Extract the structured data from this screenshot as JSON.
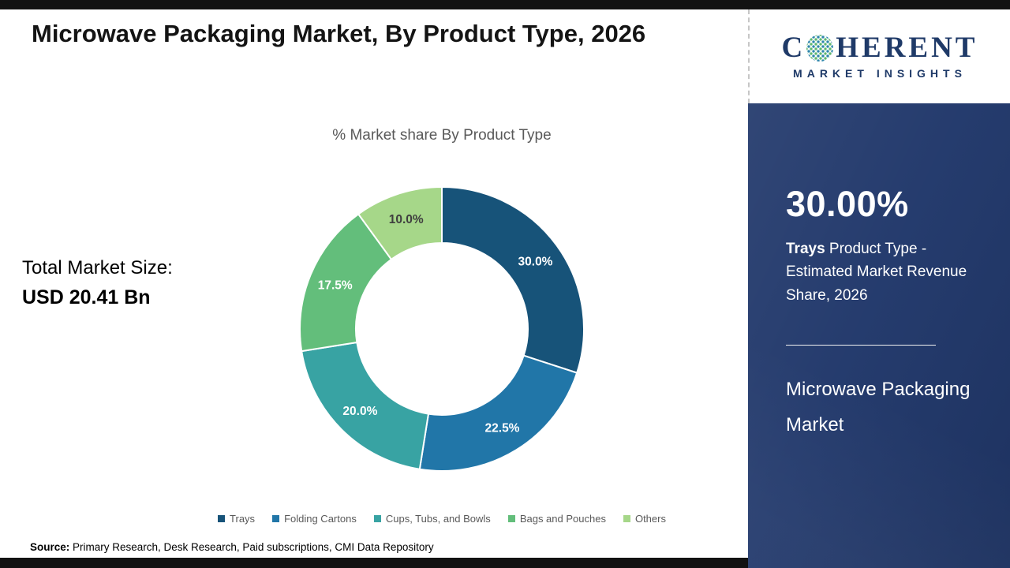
{
  "header": {
    "title": "Microwave Packaging Market, By Product Type, 2026"
  },
  "logo": {
    "prefix": "C",
    "suffix": "HERENT",
    "tagline": "MARKET INSIGHTS"
  },
  "total": {
    "label": "Total Market Size:",
    "value": "USD 20.41 Bn"
  },
  "panel": {
    "stat": "30.00%",
    "highlight": "Trays",
    "description": " Product Type - Estimated Market Revenue Share, 2026",
    "title": "Microwave Packaging Market",
    "background_color": "#21386B"
  },
  "source": {
    "label": "Source:",
    "text": " Primary Research, Desk Research, Paid subscriptions, CMI Data Repository"
  },
  "chart_data": {
    "type": "pie",
    "style": "donut",
    "title": "% Market share By Product Type",
    "unit": "%",
    "legend_position": "bottom",
    "series": [
      {
        "name": "Trays",
        "value": 30.0,
        "label": "30.0%",
        "color": "#175379",
        "label_color": "#ffffff"
      },
      {
        "name": "Folding Cartons",
        "value": 22.5,
        "label": "22.5%",
        "color": "#2176A8",
        "label_color": "#ffffff"
      },
      {
        "name": "Cups, Tubs, and Bowls",
        "value": 20.0,
        "label": "20.0%",
        "color": "#38A3A3",
        "label_color": "#ffffff"
      },
      {
        "name": "Bags and Pouches",
        "value": 17.5,
        "label": "17.5%",
        "color": "#63BE7B",
        "label_color": "#ffffff"
      },
      {
        "name": "Others",
        "value": 10.0,
        "label": "10.0%",
        "color": "#A6D789",
        "label_color": "#3f3f3f"
      }
    ]
  }
}
